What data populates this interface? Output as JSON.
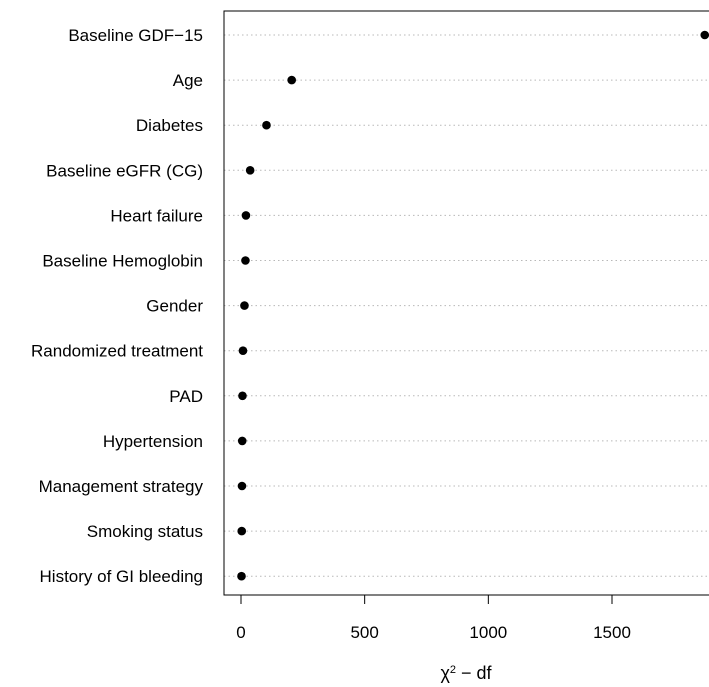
{
  "chart_data": {
    "type": "scatter",
    "title": "",
    "xlabel_base": "χ",
    "xlabel_sup": "2",
    "xlabel_rest": " − df",
    "xlim": [
      -75,
      1890
    ],
    "xticks": [
      0,
      500,
      1000,
      1500
    ],
    "xtick_labels": [
      "0",
      "500",
      "1000",
      "1500"
    ],
    "grid": "dotted horizontal guides",
    "categories": [
      "Baseline GDF−15",
      "Age",
      "Diabetes",
      "Baseline eGFR (CG)",
      "Heart failure",
      "Baseline Hemoglobin",
      "Gender",
      "Randomized treatment",
      "PAD",
      "Hypertension",
      "Management strategy",
      "Smoking status",
      "History of GI bleeding"
    ],
    "values": [
      1875,
      205,
      103,
      37,
      20,
      18,
      14,
      8,
      6,
      5,
      4,
      3,
      2
    ],
    "colors": {
      "point": "#000000",
      "axis": "#000000",
      "grid": "#b8b8b8"
    }
  }
}
